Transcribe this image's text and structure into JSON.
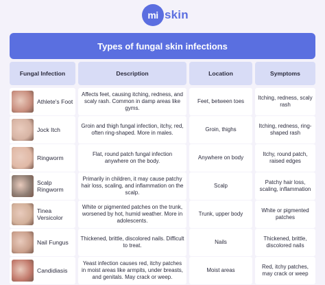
{
  "logo": {
    "mark": "mi",
    "text": "skin"
  },
  "title": "Types of fungal skin infections",
  "headers": [
    "Fungal Infection",
    "Description",
    "Location",
    "Symptoms"
  ],
  "rows": [
    {
      "name": "Athlete's Foot",
      "description": "Affects feet, causing itching, redness, and scaly rash. Common in damp areas like gyms.",
      "location": "Feet, between toes",
      "symptoms": "Itching, redness, scaly rash",
      "thumb_color": "#c98f7f"
    },
    {
      "name": "Jock Itch",
      "description": "Groin and thigh fungal infection, itchy, red, often ring-shaped. More in males.",
      "location": "Groin, thighs",
      "symptoms": "Itching, redness, ring-shaped rash",
      "thumb_color": "#d7b4a4"
    },
    {
      "name": "Ringworm",
      "description": "Flat, round patch fungal infection anywhere on the body.",
      "location": "Anywhere on body",
      "symptoms": "Itchy, round patch, raised edges",
      "thumb_color": "#e0b9a6"
    },
    {
      "name": "Scalp Ringworm",
      "description": "Primarily in children, it may cause patchy hair loss, scaling, and inflammation on the scalp.",
      "location": "Scalp",
      "symptoms": "Patchy hair loss, scaling, inflammation",
      "thumb_color": "#8e7d73"
    },
    {
      "name": "Tinea Versicolor",
      "description": "White or pigmented patches on the trunk, worsened by hot, humid weather. More in adolescents.",
      "location": "Trunk, upper body",
      "symptoms": "White or pigmented patches",
      "thumb_color": "#d2b09a"
    },
    {
      "name": "Nail Fungus",
      "description": "Thickened, brittle, discolored nails. Difficult to treat.",
      "location": "Nails",
      "symptoms": "Thickened, brittle, discolored nails",
      "thumb_color": "#caa08c"
    },
    {
      "name": "Candidiasis",
      "description": "Yeast infection causes red, itchy patches in moist areas like armpits, under breasts, and genitals. May crack or weep.",
      "location": "Moist areas",
      "symptoms": "Red, itchy patches, may crack or weep",
      "thumb_color": "#c27a6c"
    }
  ]
}
